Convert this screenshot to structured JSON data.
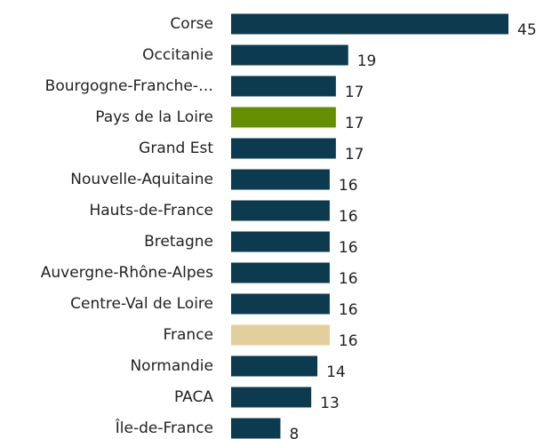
{
  "chart_data": {
    "type": "hbar",
    "categories": [
      "Corse",
      "Occitanie",
      "Bourgogne-Franche-…",
      "Pays de la Loire",
      "Grand Est",
      "Nouvelle-Aquitaine",
      "Hauts-de-France",
      "Bretagne",
      "Auvergne-Rhône-Alpes",
      "Centre-Val de Loire",
      "France",
      "Normandie",
      "PACA",
      "Île-de-France"
    ],
    "values": [
      45,
      19,
      17,
      17,
      17,
      16,
      16,
      16,
      16,
      16,
      16,
      14,
      13,
      8
    ],
    "colors": [
      "#0c3b4f",
      "#0c3b4f",
      "#0c3b4f",
      "#668f00",
      "#0c3b4f",
      "#0c3b4f",
      "#0c3b4f",
      "#0c3b4f",
      "#0c3b4f",
      "#0c3b4f",
      "#e2cf9b",
      "#0c3b4f",
      "#0c3b4f",
      "#0c3b4f"
    ]
  }
}
